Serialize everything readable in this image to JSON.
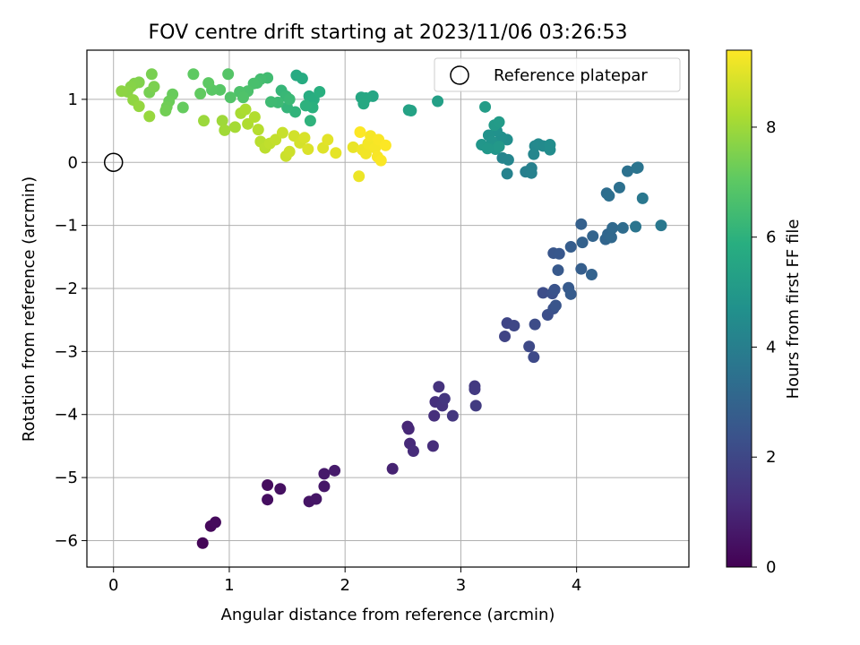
{
  "chart_data": {
    "type": "scatter",
    "title": "FOV centre drift starting at 2023/11/06 03:26:53",
    "xlabel": "Angular distance from reference (arcmin)",
    "ylabel": "Rotation from reference (arcmin)",
    "xlim": [
      -0.23,
      4.97
    ],
    "ylim": [
      -6.42,
      1.78
    ],
    "xticks": [
      0,
      1,
      2,
      3,
      4
    ],
    "yticks": [
      -6,
      -5,
      -4,
      -3,
      -2,
      -1,
      0,
      1
    ],
    "xtick_labels": [
      "0",
      "1",
      "2",
      "3",
      "4"
    ],
    "ytick_labels": [
      "−6",
      "−5",
      "−4",
      "−3",
      "−2",
      "−1",
      "0",
      "1"
    ],
    "grid": true,
    "legend": {
      "placement": "top-right",
      "entries": [
        "Reference platepar"
      ]
    },
    "reference_point": {
      "x": 0,
      "y": 0
    },
    "colorbar": {
      "label": "Hours from first FF file",
      "range": [
        0,
        9.4
      ],
      "ticks": [
        0,
        2,
        4,
        6,
        8
      ],
      "tick_labels": [
        "0",
        "2",
        "4",
        "6",
        "8"
      ],
      "colormap": "viridis"
    },
    "series": [
      {
        "points": [
          {
            "x": 0.77,
            "y": -6.04,
            "h": 0.1
          },
          {
            "x": 0.84,
            "y": -5.77,
            "h": 0.2
          },
          {
            "x": 0.88,
            "y": -5.71,
            "h": 0.25
          },
          {
            "x": 1.33,
            "y": -5.12,
            "h": 0.3
          },
          {
            "x": 1.33,
            "y": -5.35,
            "h": 0.35
          },
          {
            "x": 1.44,
            "y": -5.18,
            "h": 0.4
          },
          {
            "x": 1.69,
            "y": -5.38,
            "h": 0.5
          },
          {
            "x": 1.75,
            "y": -5.34,
            "h": 0.55
          },
          {
            "x": 1.82,
            "y": -5.14,
            "h": 0.6
          },
          {
            "x": 1.82,
            "y": -4.94,
            "h": 0.65
          },
          {
            "x": 1.91,
            "y": -4.89,
            "h": 0.7
          },
          {
            "x": 2.41,
            "y": -4.86,
            "h": 0.9
          },
          {
            "x": 2.54,
            "y": -4.19,
            "h": 1.0
          },
          {
            "x": 2.55,
            "y": -4.23,
            "h": 1.05
          },
          {
            "x": 2.56,
            "y": -4.46,
            "h": 1.1
          },
          {
            "x": 2.59,
            "y": -4.58,
            "h": 1.15
          },
          {
            "x": 2.76,
            "y": -4.5,
            "h": 1.2
          },
          {
            "x": 2.77,
            "y": -4.02,
            "h": 1.25
          },
          {
            "x": 2.78,
            "y": -3.8,
            "h": 1.3
          },
          {
            "x": 2.81,
            "y": -3.56,
            "h": 1.35
          },
          {
            "x": 2.84,
            "y": -3.86,
            "h": 1.4
          },
          {
            "x": 2.86,
            "y": -3.75,
            "h": 1.45
          },
          {
            "x": 2.93,
            "y": -4.02,
            "h": 1.5
          },
          {
            "x": 3.12,
            "y": -3.55,
            "h": 1.55
          },
          {
            "x": 3.12,
            "y": -3.6,
            "h": 1.6
          },
          {
            "x": 3.13,
            "y": -3.86,
            "h": 1.65
          },
          {
            "x": 3.38,
            "y": -2.76,
            "h": 1.9
          },
          {
            "x": 3.4,
            "y": -2.55,
            "h": 1.95
          },
          {
            "x": 3.46,
            "y": -2.59,
            "h": 2.0
          },
          {
            "x": 3.59,
            "y": -2.92,
            "h": 2.05
          },
          {
            "x": 3.63,
            "y": -3.09,
            "h": 2.1
          },
          {
            "x": 3.64,
            "y": -2.57,
            "h": 2.15
          },
          {
            "x": 3.71,
            "y": -2.07,
            "h": 2.2
          },
          {
            "x": 3.75,
            "y": -2.42,
            "h": 2.25
          },
          {
            "x": 3.79,
            "y": -2.08,
            "h": 2.3
          },
          {
            "x": 3.8,
            "y": -2.32,
            "h": 2.35
          },
          {
            "x": 3.81,
            "y": -2.02,
            "h": 2.4
          },
          {
            "x": 3.82,
            "y": -2.27,
            "h": 2.45
          },
          {
            "x": 3.8,
            "y": -1.44,
            "h": 2.5
          },
          {
            "x": 3.85,
            "y": -1.45,
            "h": 2.55
          },
          {
            "x": 3.84,
            "y": -1.71,
            "h": 2.6
          },
          {
            "x": 3.93,
            "y": -1.99,
            "h": 2.65
          },
          {
            "x": 3.95,
            "y": -2.09,
            "h": 2.7
          },
          {
            "x": 3.95,
            "y": -1.34,
            "h": 2.75
          },
          {
            "x": 4.04,
            "y": -1.69,
            "h": 2.8
          },
          {
            "x": 4.04,
            "y": -0.98,
            "h": 2.85
          },
          {
            "x": 4.05,
            "y": -1.27,
            "h": 2.9
          },
          {
            "x": 4.13,
            "y": -1.78,
            "h": 2.95
          },
          {
            "x": 4.14,
            "y": -1.17,
            "h": 3.0
          },
          {
            "x": 4.25,
            "y": -1.22,
            "h": 3.05
          },
          {
            "x": 4.27,
            "y": -1.14,
            "h": 3.1
          },
          {
            "x": 4.3,
            "y": -1.19,
            "h": 3.15
          },
          {
            "x": 4.31,
            "y": -1.04,
            "h": 3.2
          },
          {
            "x": 4.4,
            "y": -1.04,
            "h": 3.3
          },
          {
            "x": 4.26,
            "y": -0.49,
            "h": 3.35
          },
          {
            "x": 4.28,
            "y": -0.53,
            "h": 3.4
          },
          {
            "x": 4.37,
            "y": -0.4,
            "h": 3.45
          },
          {
            "x": 4.44,
            "y": -0.14,
            "h": 3.5
          },
          {
            "x": 4.52,
            "y": -0.09,
            "h": 3.55
          },
          {
            "x": 4.53,
            "y": -0.08,
            "h": 3.6
          },
          {
            "x": 4.51,
            "y": -1.02,
            "h": 3.65
          },
          {
            "x": 4.57,
            "y": -0.57,
            "h": 3.7
          },
          {
            "x": 4.73,
            "y": -1.0,
            "h": 3.75
          },
          {
            "x": 3.56,
            "y": -0.15,
            "h": 4.0
          },
          {
            "x": 3.61,
            "y": -0.09,
            "h": 4.05
          },
          {
            "x": 3.61,
            "y": -0.17,
            "h": 4.1
          },
          {
            "x": 3.4,
            "y": -0.18,
            "h": 4.15
          },
          {
            "x": 3.36,
            "y": 0.07,
            "h": 4.2
          },
          {
            "x": 3.41,
            "y": 0.04,
            "h": 4.25
          },
          {
            "x": 3.63,
            "y": 0.13,
            "h": 4.3
          },
          {
            "x": 3.64,
            "y": 0.26,
            "h": 4.35
          },
          {
            "x": 3.67,
            "y": 0.29,
            "h": 4.4
          },
          {
            "x": 3.71,
            "y": 0.26,
            "h": 4.45
          },
          {
            "x": 3.77,
            "y": 0.2,
            "h": 4.5
          },
          {
            "x": 3.77,
            "y": 0.28,
            "h": 4.55
          },
          {
            "x": 3.4,
            "y": 0.36,
            "h": 4.6
          },
          {
            "x": 3.35,
            "y": 0.4,
            "h": 4.65
          },
          {
            "x": 3.31,
            "y": 0.5,
            "h": 4.7
          },
          {
            "x": 3.24,
            "y": 0.43,
            "h": 4.75
          },
          {
            "x": 3.27,
            "y": 0.33,
            "h": 4.8
          },
          {
            "x": 3.3,
            "y": 0.21,
            "h": 4.85
          },
          {
            "x": 3.18,
            "y": 0.28,
            "h": 4.9
          },
          {
            "x": 3.23,
            "y": 0.22,
            "h": 4.95
          },
          {
            "x": 3.33,
            "y": 0.25,
            "h": 5.0
          },
          {
            "x": 3.29,
            "y": 0.59,
            "h": 5.05
          },
          {
            "x": 3.33,
            "y": 0.64,
            "h": 5.1
          },
          {
            "x": 3.21,
            "y": 0.88,
            "h": 5.15
          },
          {
            "x": 2.8,
            "y": 0.97,
            "h": 5.25
          },
          {
            "x": 2.55,
            "y": 0.83,
            "h": 5.35
          },
          {
            "x": 2.57,
            "y": 0.82,
            "h": 5.4
          },
          {
            "x": 2.24,
            "y": 1.05,
            "h": 5.5
          },
          {
            "x": 2.14,
            "y": 1.03,
            "h": 5.55
          },
          {
            "x": 2.18,
            "y": 1.02,
            "h": 5.6
          },
          {
            "x": 2.16,
            "y": 0.93,
            "h": 5.65
          },
          {
            "x": 1.58,
            "y": 1.38,
            "h": 5.7
          },
          {
            "x": 1.63,
            "y": 1.33,
            "h": 5.75
          },
          {
            "x": 1.69,
            "y": 1.05,
            "h": 5.8
          },
          {
            "x": 1.73,
            "y": 1.0,
            "h": 5.85
          },
          {
            "x": 1.78,
            "y": 1.12,
            "h": 5.9
          },
          {
            "x": 1.72,
            "y": 0.87,
            "h": 5.95
          },
          {
            "x": 1.66,
            "y": 0.9,
            "h": 6.0
          },
          {
            "x": 1.7,
            "y": 0.66,
            "h": 6.05
          },
          {
            "x": 1.57,
            "y": 0.8,
            "h": 6.1
          },
          {
            "x": 1.5,
            "y": 0.87,
            "h": 6.15
          },
          {
            "x": 1.45,
            "y": 1.14,
            "h": 6.2
          },
          {
            "x": 1.49,
            "y": 1.05,
            "h": 6.25
          },
          {
            "x": 1.52,
            "y": 1.0,
            "h": 6.3
          },
          {
            "x": 1.42,
            "y": 0.95,
            "h": 6.35
          },
          {
            "x": 1.36,
            "y": 0.96,
            "h": 6.4
          },
          {
            "x": 1.33,
            "y": 1.34,
            "h": 6.45
          },
          {
            "x": 1.27,
            "y": 1.32,
            "h": 6.5
          },
          {
            "x": 1.24,
            "y": 1.26,
            "h": 6.55
          },
          {
            "x": 1.21,
            "y": 1.25,
            "h": 6.6
          },
          {
            "x": 1.16,
            "y": 1.13,
            "h": 6.65
          },
          {
            "x": 1.09,
            "y": 1.12,
            "h": 6.7
          },
          {
            "x": 1.12,
            "y": 1.03,
            "h": 6.75
          },
          {
            "x": 1.01,
            "y": 1.03,
            "h": 6.8
          },
          {
            "x": 0.99,
            "y": 1.4,
            "h": 6.85
          },
          {
            "x": 0.92,
            "y": 1.15,
            "h": 6.9
          },
          {
            "x": 0.85,
            "y": 1.15,
            "h": 6.95
          },
          {
            "x": 0.82,
            "y": 1.26,
            "h": 7.0
          },
          {
            "x": 0.69,
            "y": 1.4,
            "h": 7.05
          },
          {
            "x": 0.75,
            "y": 1.09,
            "h": 7.1
          },
          {
            "x": 0.6,
            "y": 0.87,
            "h": 7.15
          },
          {
            "x": 0.51,
            "y": 1.08,
            "h": 7.2
          },
          {
            "x": 0.48,
            "y": 0.97,
            "h": 7.25
          },
          {
            "x": 0.46,
            "y": 0.88,
            "h": 7.3
          },
          {
            "x": 0.45,
            "y": 0.82,
            "h": 7.35
          },
          {
            "x": 0.31,
            "y": 1.11,
            "h": 7.4
          },
          {
            "x": 0.33,
            "y": 1.4,
            "h": 7.45
          },
          {
            "x": 0.35,
            "y": 1.2,
            "h": 7.5
          },
          {
            "x": 0.22,
            "y": 1.27,
            "h": 7.55
          },
          {
            "x": 0.18,
            "y": 1.25,
            "h": 7.6
          },
          {
            "x": 0.15,
            "y": 1.2,
            "h": 7.65
          },
          {
            "x": 0.12,
            "y": 1.12,
            "h": 7.7
          },
          {
            "x": 0.07,
            "y": 1.13,
            "h": 7.75
          },
          {
            "x": 0.17,
            "y": 0.99,
            "h": 7.8
          },
          {
            "x": 0.22,
            "y": 0.89,
            "h": 7.85
          },
          {
            "x": 0.31,
            "y": 0.73,
            "h": 7.9
          },
          {
            "x": 0.78,
            "y": 0.66,
            "h": 7.95
          },
          {
            "x": 0.94,
            "y": 0.66,
            "h": 8.0
          },
          {
            "x": 0.96,
            "y": 0.51,
            "h": 8.05
          },
          {
            "x": 1.05,
            "y": 0.56,
            "h": 8.1
          },
          {
            "x": 1.1,
            "y": 0.78,
            "h": 8.15
          },
          {
            "x": 1.14,
            "y": 0.84,
            "h": 8.2
          },
          {
            "x": 1.16,
            "y": 0.61,
            "h": 8.25
          },
          {
            "x": 1.22,
            "y": 0.72,
            "h": 8.3
          },
          {
            "x": 1.25,
            "y": 0.52,
            "h": 8.35
          },
          {
            "x": 1.27,
            "y": 0.33,
            "h": 8.4
          },
          {
            "x": 1.31,
            "y": 0.23,
            "h": 8.45
          },
          {
            "x": 1.35,
            "y": 0.3,
            "h": 8.5
          },
          {
            "x": 1.4,
            "y": 0.36,
            "h": 8.55
          },
          {
            "x": 1.46,
            "y": 0.47,
            "h": 8.6
          },
          {
            "x": 1.49,
            "y": 0.1,
            "h": 8.65
          },
          {
            "x": 1.52,
            "y": 0.17,
            "h": 8.7
          },
          {
            "x": 1.56,
            "y": 0.42,
            "h": 8.75
          },
          {
            "x": 1.61,
            "y": 0.31,
            "h": 8.8
          },
          {
            "x": 1.65,
            "y": 0.39,
            "h": 8.85
          },
          {
            "x": 1.68,
            "y": 0.21,
            "h": 8.9
          },
          {
            "x": 1.81,
            "y": 0.23,
            "h": 8.95
          },
          {
            "x": 1.85,
            "y": 0.36,
            "h": 9.0
          },
          {
            "x": 1.92,
            "y": 0.15,
            "h": 9.05
          },
          {
            "x": 2.07,
            "y": 0.24,
            "h": 9.1
          },
          {
            "x": 2.12,
            "y": -0.22,
            "h": 9.15
          },
          {
            "x": 2.15,
            "y": 0.2,
            "h": 9.2
          },
          {
            "x": 2.18,
            "y": 0.14,
            "h": 9.22
          },
          {
            "x": 2.2,
            "y": 0.3,
            "h": 9.25
          },
          {
            "x": 2.22,
            "y": 0.42,
            "h": 9.28
          },
          {
            "x": 2.26,
            "y": 0.23,
            "h": 9.3
          },
          {
            "x": 2.28,
            "y": 0.09,
            "h": 9.32
          },
          {
            "x": 2.29,
            "y": 0.36,
            "h": 9.34
          },
          {
            "x": 2.31,
            "y": 0.03,
            "h": 9.36
          },
          {
            "x": 2.35,
            "y": 0.27,
            "h": 9.38
          },
          {
            "x": 2.13,
            "y": 0.48,
            "h": 9.39
          }
        ]
      }
    ]
  }
}
